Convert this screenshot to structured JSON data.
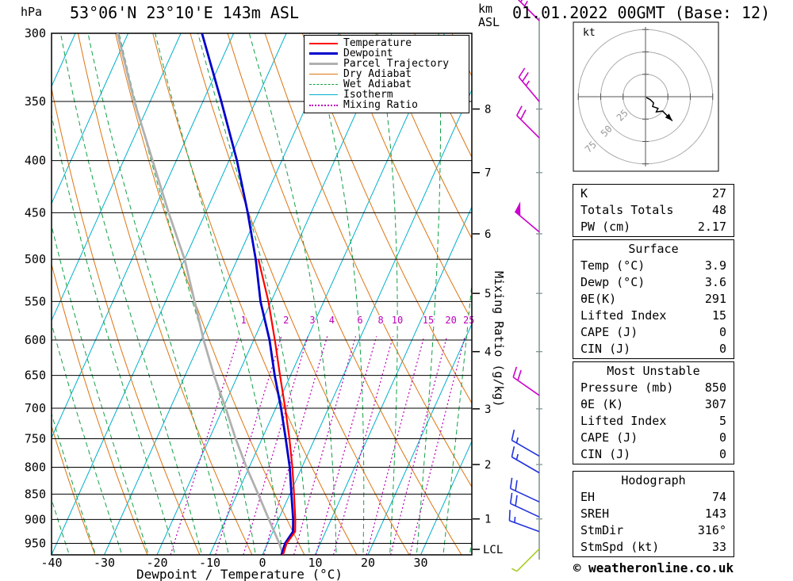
{
  "header": {
    "station_title": "53°06'N 23°10'E 143m ASL",
    "run_title": "01.01.2022 00GMT (Base: 12)",
    "pressure_unit": "hPa",
    "km_label_line1": "km",
    "km_label_line2": "ASL"
  },
  "axes": {
    "xlabel": "Dewpoint / Temperature (°C)",
    "mixing_label": "Mixing Ratio (g/kg)",
    "lcl": "LCL",
    "km_ticks": [
      8,
      7,
      6,
      5,
      4,
      3,
      2,
      1
    ]
  },
  "legend": {
    "items": [
      {
        "label": "Temperature",
        "color": "#ff0000",
        "pattern": "solid",
        "weight": 2
      },
      {
        "label": "Dewpoint",
        "color": "#0000cc",
        "pattern": "solid",
        "weight": 3
      },
      {
        "label": "Parcel Trajectory",
        "color": "#b0b0b0",
        "pattern": "solid",
        "weight": 3
      },
      {
        "label": "Dry Adiabat",
        "color": "#dd7511",
        "pattern": "solid",
        "weight": 1
      },
      {
        "label": "Wet Adiabat",
        "color": "#11a044",
        "pattern": "dashed",
        "weight": 1
      },
      {
        "label": "Isotherm",
        "color": "#00b0cc",
        "pattern": "solid",
        "weight": 1
      },
      {
        "label": "Mixing Ratio",
        "color": "#bb00bb",
        "pattern": "dotted",
        "weight": 2
      }
    ]
  },
  "tables": [
    {
      "rows": [
        [
          "K",
          "27"
        ],
        [
          "Totals Totals",
          "48"
        ],
        [
          "PW (cm)",
          "2.17"
        ]
      ]
    },
    {
      "title": "Surface",
      "rows": [
        [
          "Temp (°C)",
          "3.9"
        ],
        [
          "Dewp (°C)",
          "3.6"
        ],
        [
          "θE(K)",
          "291"
        ],
        [
          "Lifted Index",
          "15"
        ],
        [
          "CAPE (J)",
          "0"
        ],
        [
          "CIN (J)",
          "0"
        ]
      ]
    },
    {
      "title": "Most Unstable",
      "rows": [
        [
          "Pressure (mb)",
          "850"
        ],
        [
          "θE (K)",
          "307"
        ],
        [
          "Lifted Index",
          "5"
        ],
        [
          "CAPE (J)",
          "0"
        ],
        [
          "CIN (J)",
          "0"
        ]
      ]
    },
    {
      "title": "Hodograph",
      "rows": [
        [
          "EH",
          "74"
        ],
        [
          "SREH",
          "143"
        ],
        [
          "StmDir",
          "316°"
        ],
        [
          "StmSpd (kt)",
          "33"
        ]
      ]
    }
  ],
  "footer": "© weatheronline.co.uk",
  "hodograph": {
    "unit": "kt",
    "rings_kt": [
      25,
      50,
      75
    ],
    "trace_uv_kt": [
      [
        1,
        -1
      ],
      [
        5,
        -3
      ],
      [
        9,
        -7
      ],
      [
        8,
        -11
      ],
      [
        14,
        -13
      ],
      [
        12,
        -17
      ],
      [
        19,
        -16
      ],
      [
        25,
        -22
      ],
      [
        30,
        -27
      ]
    ]
  },
  "chart_data": {
    "type": "skewt_log_p_sounding",
    "pressure_ticks_hpa": [
      300,
      350,
      400,
      450,
      500,
      550,
      600,
      650,
      700,
      750,
      800,
      850,
      900,
      950
    ],
    "temp_ticks_c": [
      -40,
      -30,
      -20,
      -10,
      0,
      10,
      20,
      30
    ],
    "surface_pressure_hpa": 975,
    "isotherm_step_c": 10,
    "dry_adiabat_step_c": 10,
    "wet_adiabat_step_c": 5,
    "mixing_ratio_lines_g_kg": [
      1,
      2,
      3,
      4,
      6,
      8,
      10,
      15,
      20,
      25
    ],
    "colors": {
      "isotherm": "#00b0cc",
      "dry_adiabat": "#dd7511",
      "wet_adiabat": "#11a044",
      "mixing_ratio": "#bb00bb",
      "temperature": "#ff0000",
      "dewpoint": "#0000cc",
      "parcel": "#b0b0b0",
      "pressure_grid": "#000000",
      "wind_column": "#7d8f8f"
    },
    "series": [
      {
        "name": "Temperature",
        "color": "#ff0000",
        "width": 2.2,
        "points": [
          [
            975,
            3.9
          ],
          [
            950,
            3.6
          ],
          [
            925,
            4.2
          ],
          [
            900,
            3.2
          ],
          [
            850,
            0.8
          ],
          [
            800,
            -1.8
          ],
          [
            750,
            -4.8
          ],
          [
            700,
            -8.2
          ],
          [
            650,
            -12.0
          ],
          [
            600,
            -16.0
          ],
          [
            550,
            -20.5
          ],
          [
            500,
            -26.0
          ]
        ]
      },
      {
        "name": "Dewpoint",
        "color": "#0000cc",
        "width": 2.8,
        "points": [
          [
            975,
            3.6
          ],
          [
            950,
            3.3
          ],
          [
            925,
            3.8
          ],
          [
            900,
            2.8
          ],
          [
            850,
            0.3
          ],
          [
            800,
            -2.3
          ],
          [
            750,
            -5.5
          ],
          [
            700,
            -9.0
          ],
          [
            650,
            -13.0
          ],
          [
            600,
            -17.0
          ],
          [
            550,
            -22.0
          ],
          [
            500,
            -26.5
          ],
          [
            450,
            -32.0
          ],
          [
            400,
            -38.5
          ],
          [
            350,
            -46.5
          ],
          [
            300,
            -56.0
          ]
        ]
      },
      {
        "name": "Parcel Trajectory",
        "color": "#b0b0b0",
        "width": 2.8,
        "points": [
          [
            975,
            3.9
          ],
          [
            950,
            2.2
          ],
          [
            900,
            -1.8
          ],
          [
            850,
            -6.0
          ],
          [
            800,
            -10.5
          ],
          [
            750,
            -15.0
          ],
          [
            700,
            -19.5
          ],
          [
            650,
            -24.5
          ],
          [
            600,
            -29.5
          ],
          [
            550,
            -34.5
          ],
          [
            500,
            -40.0
          ],
          [
            450,
            -47.0
          ],
          [
            400,
            -54.5
          ],
          [
            350,
            -63.0
          ],
          [
            300,
            -72.0
          ]
        ]
      }
    ],
    "wind_barbs": [
      {
        "p": 290,
        "speed_kt": 25,
        "dir_deg": 315,
        "color": "#cc00cc"
      },
      {
        "p": 350,
        "speed_kt": 25,
        "dir_deg": 320,
        "color": "#cc00cc"
      },
      {
        "p": 380,
        "speed_kt": 20,
        "dir_deg": 315,
        "color": "#cc00cc"
      },
      {
        "p": 470,
        "speed_kt": 50,
        "dir_deg": 310,
        "color": "#cc00cc"
      },
      {
        "p": 680,
        "speed_kt": 20,
        "dir_deg": 305,
        "color": "#cc00cc"
      },
      {
        "p": 780,
        "speed_kt": 15,
        "dir_deg": 300,
        "color": "#2233dd"
      },
      {
        "p": 810,
        "speed_kt": 15,
        "dir_deg": 300,
        "color": "#2233dd"
      },
      {
        "p": 865,
        "speed_kt": 20,
        "dir_deg": 295,
        "color": "#2233dd"
      },
      {
        "p": 895,
        "speed_kt": 20,
        "dir_deg": 295,
        "color": "#2233dd"
      },
      {
        "p": 925,
        "speed_kt": 15,
        "dir_deg": 290,
        "color": "#2233dd"
      },
      {
        "p": 962,
        "speed_kt": 5,
        "dir_deg": 225,
        "color": "#aacc22"
      }
    ]
  }
}
